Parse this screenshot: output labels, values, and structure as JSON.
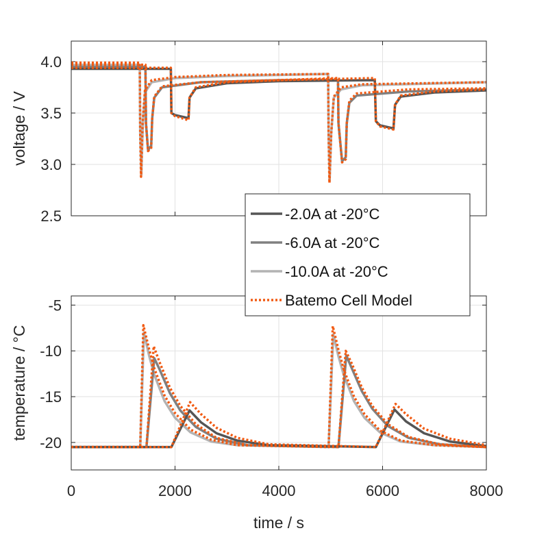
{
  "colors": {
    "m2": "#555555",
    "m6": "#808080",
    "m10": "#b3b3b3",
    "model": "#f15a12",
    "grid": "#e2e2e2",
    "axis": "#262626"
  },
  "legend": {
    "placement": "center-right",
    "entries": [
      {
        "label": "-2.0A at -20°C",
        "color": "#555555",
        "style": "solid"
      },
      {
        "label": "-6.0A at -20°C",
        "color": "#808080",
        "style": "solid"
      },
      {
        "label": "-10.0A at -20°C",
        "color": "#b3b3b3",
        "style": "solid"
      },
      {
        "label": "Batemo Cell Model",
        "color": "#f15a12",
        "style": "dotted"
      }
    ]
  },
  "chart_data": [
    {
      "type": "line",
      "title": "",
      "xlabel": "",
      "ylabel": "voltage / V",
      "xlim": [
        0,
        8000
      ],
      "ylim": [
        2.5,
        4.2
      ],
      "xticks": [
        0,
        2000,
        4000,
        6000,
        8000
      ],
      "yticks": [
        "2.5",
        "3.0",
        "3.5",
        "4.0"
      ],
      "show_xtick_labels": false,
      "grid": true,
      "series": [
        {
          "name": "-10.0A at -20°C",
          "color": "#b3b3b3",
          "style": "solid",
          "points": [
            [
              0,
              3.97
            ],
            [
              1320,
              3.97
            ],
            [
              1330,
              3.3
            ],
            [
              1350,
              2.9
            ],
            [
              1380,
              3.4
            ],
            [
              1420,
              3.7
            ],
            [
              1550,
              3.8
            ],
            [
              2000,
              3.84
            ],
            [
              3000,
              3.86
            ],
            [
              4950,
              3.88
            ],
            [
              4960,
              3.3
            ],
            [
              4980,
              2.84
            ],
            [
              5010,
              3.3
            ],
            [
              5060,
              3.65
            ],
            [
              5200,
              3.73
            ],
            [
              5600,
              3.77
            ],
            [
              8000,
              3.8
            ]
          ]
        },
        {
          "name": "-6.0A at -20°C",
          "color": "#808080",
          "style": "solid",
          "points": [
            [
              0,
              3.95
            ],
            [
              1430,
              3.95
            ],
            [
              1440,
              3.4
            ],
            [
              1480,
              3.14
            ],
            [
              1540,
              3.18
            ],
            [
              1560,
              3.45
            ],
            [
              1600,
              3.65
            ],
            [
              1750,
              3.75
            ],
            [
              2500,
              3.8
            ],
            [
              4000,
              3.82
            ],
            [
              5140,
              3.82
            ],
            [
              5150,
              3.4
            ],
            [
              5220,
              3.03
            ],
            [
              5290,
              3.07
            ],
            [
              5310,
              3.4
            ],
            [
              5360,
              3.6
            ],
            [
              5500,
              3.67
            ],
            [
              6500,
              3.71
            ],
            [
              8000,
              3.73
            ]
          ]
        },
        {
          "name": "-2.0A at -20°C",
          "color": "#555555",
          "style": "solid",
          "points": [
            [
              0,
              3.93
            ],
            [
              1920,
              3.93
            ],
            [
              1930,
              3.5
            ],
            [
              2000,
              3.48
            ],
            [
              2260,
              3.45
            ],
            [
              2280,
              3.65
            ],
            [
              2400,
              3.74
            ],
            [
              3000,
              3.79
            ],
            [
              4000,
              3.81
            ],
            [
              5850,
              3.82
            ],
            [
              5870,
              3.42
            ],
            [
              5950,
              3.38
            ],
            [
              6210,
              3.35
            ],
            [
              6240,
              3.58
            ],
            [
              6350,
              3.66
            ],
            [
              7000,
              3.7
            ],
            [
              8000,
              3.72
            ]
          ]
        },
        {
          "name": "Batemo Cell Model (-10.0A)",
          "color": "#f15a12",
          "style": "dotted",
          "points": [
            [
              0,
              3.99
            ],
            [
              1320,
              3.99
            ],
            [
              1330,
              3.3
            ],
            [
              1345,
              2.88
            ],
            [
              1375,
              3.4
            ],
            [
              1420,
              3.72
            ],
            [
              1550,
              3.82
            ],
            [
              2000,
              3.85
            ],
            [
              3000,
              3.87
            ],
            [
              4950,
              3.88
            ],
            [
              4960,
              3.3
            ],
            [
              4975,
              2.82
            ],
            [
              5010,
              3.3
            ],
            [
              5060,
              3.66
            ],
            [
              5200,
              3.75
            ],
            [
              5600,
              3.78
            ],
            [
              8000,
              3.8
            ]
          ]
        },
        {
          "name": "Batemo Cell Model (-6.0A)",
          "color": "#f15a12",
          "style": "dotted",
          "points": [
            [
              0,
              3.97
            ],
            [
              1430,
              3.97
            ],
            [
              1440,
              3.4
            ],
            [
              1480,
              3.13
            ],
            [
              1540,
              3.16
            ],
            [
              1560,
              3.45
            ],
            [
              1600,
              3.66
            ],
            [
              1750,
              3.76
            ],
            [
              2500,
              3.8
            ],
            [
              4000,
              3.82
            ],
            [
              5140,
              3.84
            ],
            [
              5150,
              3.4
            ],
            [
              5220,
              3.02
            ],
            [
              5290,
              3.05
            ],
            [
              5310,
              3.4
            ],
            [
              5360,
              3.62
            ],
            [
              5500,
              3.69
            ],
            [
              6500,
              3.73
            ],
            [
              8000,
              3.74
            ]
          ]
        },
        {
          "name": "Batemo Cell Model (-2.0A)",
          "color": "#f15a12",
          "style": "dotted",
          "points": [
            [
              0,
              3.94
            ],
            [
              1920,
              3.94
            ],
            [
              1930,
              3.5
            ],
            [
              2000,
              3.47
            ],
            [
              2260,
              3.43
            ],
            [
              2280,
              3.65
            ],
            [
              2400,
              3.75
            ],
            [
              3000,
              3.8
            ],
            [
              4000,
              3.82
            ],
            [
              5850,
              3.84
            ],
            [
              5870,
              3.42
            ],
            [
              5950,
              3.37
            ],
            [
              6210,
              3.34
            ],
            [
              6240,
              3.58
            ],
            [
              6350,
              3.67
            ],
            [
              7000,
              3.71
            ],
            [
              8000,
              3.73
            ]
          ]
        }
      ]
    },
    {
      "type": "line",
      "title": "",
      "xlabel": "time / s",
      "ylabel": "temperature / °C",
      "xlim": [
        0,
        8000
      ],
      "ylim": [
        -23,
        -4
      ],
      "xticks": [
        "0",
        "2000",
        "4000",
        "6000",
        "8000"
      ],
      "yticks": [
        "-20",
        "-15",
        "-10",
        "-5"
      ],
      "show_xtick_labels": true,
      "grid": true,
      "series": [
        {
          "name": "-10.0A at -20°C",
          "color": "#b3b3b3",
          "style": "solid",
          "points": [
            [
              0,
              -20.5
            ],
            [
              1330,
              -20.5
            ],
            [
              1400,
              -8
            ],
            [
              1500,
              -10.5
            ],
            [
              1600,
              -12.6
            ],
            [
              1800,
              -15.5
            ],
            [
              2000,
              -17.3
            ],
            [
              2300,
              -18.9
            ],
            [
              2700,
              -19.9
            ],
            [
              3200,
              -20.3
            ],
            [
              4960,
              -20.5
            ],
            [
              5050,
              -8.2
            ],
            [
              5150,
              -10.6
            ],
            [
              5250,
              -12.6
            ],
            [
              5450,
              -15.5
            ],
            [
              5650,
              -17.3
            ],
            [
              5950,
              -18.9
            ],
            [
              6350,
              -19.9
            ],
            [
              7000,
              -20.3
            ],
            [
              8000,
              -20.5
            ]
          ]
        },
        {
          "name": "-6.0A at -20°C",
          "color": "#808080",
          "style": "solid",
          "points": [
            [
              0,
              -20.5
            ],
            [
              1450,
              -20.5
            ],
            [
              1600,
              -10.8
            ],
            [
              1700,
              -12
            ],
            [
              1900,
              -14.6
            ],
            [
              2100,
              -16.5
            ],
            [
              2400,
              -18.3
            ],
            [
              2800,
              -19.6
            ],
            [
              3400,
              -20.3
            ],
            [
              5150,
              -20.5
            ],
            [
              5300,
              -10.5
            ],
            [
              5400,
              -11.8
            ],
            [
              5600,
              -14.4
            ],
            [
              5800,
              -16.3
            ],
            [
              6100,
              -18.2
            ],
            [
              6500,
              -19.5
            ],
            [
              7100,
              -20.2
            ],
            [
              8000,
              -20.5
            ]
          ]
        },
        {
          "name": "-2.0A at -20°C",
          "color": "#555555",
          "style": "solid",
          "points": [
            [
              0,
              -20.5
            ],
            [
              1930,
              -20.5
            ],
            [
              2280,
              -16.5
            ],
            [
              2500,
              -17.8
            ],
            [
              2800,
              -19
            ],
            [
              3200,
              -19.8
            ],
            [
              3800,
              -20.3
            ],
            [
              5870,
              -20.5
            ],
            [
              6230,
              -16.4
            ],
            [
              6450,
              -17.7
            ],
            [
              6800,
              -19
            ],
            [
              7300,
              -19.9
            ],
            [
              8000,
              -20.4
            ]
          ]
        },
        {
          "name": "Batemo Cell Model (-10.0A)",
          "color": "#f15a12",
          "style": "dotted",
          "points": [
            [
              0,
              -20.5
            ],
            [
              1330,
              -20.5
            ],
            [
              1390,
              -7.2
            ],
            [
              1500,
              -9.8
            ],
            [
              1600,
              -11.9
            ],
            [
              1800,
              -14.9
            ],
            [
              2000,
              -16.8
            ],
            [
              2300,
              -18.6
            ],
            [
              2700,
              -19.7
            ],
            [
              3200,
              -20.3
            ],
            [
              4960,
              -20.5
            ],
            [
              5040,
              -7.3
            ],
            [
              5150,
              -9.9
            ],
            [
              5250,
              -12
            ],
            [
              5450,
              -15
            ],
            [
              5650,
              -16.9
            ],
            [
              5950,
              -18.7
            ],
            [
              6350,
              -19.8
            ],
            [
              7000,
              -20.3
            ],
            [
              8000,
              -20.5
            ]
          ]
        },
        {
          "name": "Batemo Cell Model (-6.0A)",
          "color": "#f15a12",
          "style": "dotted",
          "points": [
            [
              0,
              -20.5
            ],
            [
              1450,
              -20.5
            ],
            [
              1590,
              -9.5
            ],
            [
              1700,
              -11.2
            ],
            [
              1900,
              -14
            ],
            [
              2100,
              -16
            ],
            [
              2400,
              -18
            ],
            [
              2800,
              -19.5
            ],
            [
              3400,
              -20.3
            ],
            [
              5150,
              -20.5
            ],
            [
              5290,
              -10
            ],
            [
              5400,
              -11.3
            ],
            [
              5600,
              -14
            ],
            [
              5800,
              -16
            ],
            [
              6100,
              -18
            ],
            [
              6500,
              -19.4
            ],
            [
              7100,
              -20.2
            ],
            [
              8000,
              -20.5
            ]
          ]
        },
        {
          "name": "Batemo Cell Model (-2.0A)",
          "color": "#f15a12",
          "style": "dotted",
          "points": [
            [
              0,
              -20.5
            ],
            [
              1930,
              -20.5
            ],
            [
              2290,
              -15.6
            ],
            [
              2500,
              -16.9
            ],
            [
              2800,
              -18.4
            ],
            [
              3200,
              -19.5
            ],
            [
              3800,
              -20.2
            ],
            [
              5870,
              -20.5
            ],
            [
              6250,
              -15.8
            ],
            [
              6450,
              -16.9
            ],
            [
              6800,
              -18.5
            ],
            [
              7300,
              -19.6
            ],
            [
              8000,
              -20.3
            ]
          ]
        }
      ]
    }
  ]
}
